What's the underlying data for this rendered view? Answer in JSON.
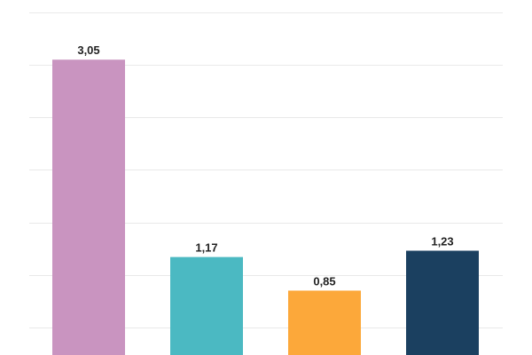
{
  "chart_data": {
    "type": "bar",
    "categories": [
      "",
      "",
      "",
      ""
    ],
    "values": [
      3.05,
      1.17,
      0.85,
      1.23
    ],
    "value_labels": [
      "3,05",
      "1,17",
      "0,85",
      "1,23"
    ],
    "colors": [
      "#c994c0",
      "#4bb9c2",
      "#fca83a",
      "#1b4060"
    ],
    "title": "",
    "xlabel": "",
    "ylabel": "",
    "ylim": [
      0,
      3.5
    ],
    "grid": true,
    "legend": "none"
  }
}
